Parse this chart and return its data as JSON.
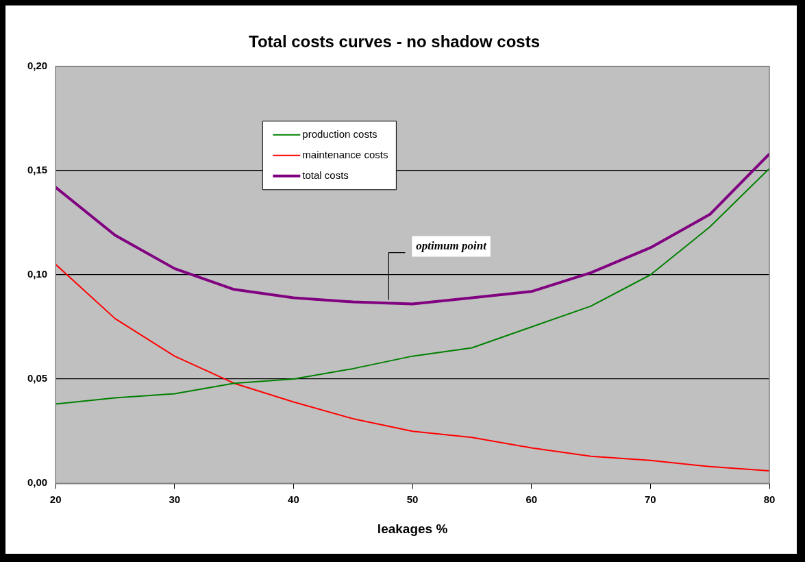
{
  "chart_data": {
    "type": "line",
    "title": "Total costs curves - no shadow costs",
    "xlabel": "leakages %",
    "x": [
      20,
      25,
      30,
      35,
      40,
      45,
      50,
      55,
      60,
      65,
      70,
      75,
      80
    ],
    "series": [
      {
        "name": "production costs",
        "color": "#008000",
        "values": [
          0.038,
          0.041,
          0.043,
          0.048,
          0.05,
          0.055,
          0.061,
          0.065,
          0.075,
          0.085,
          0.1,
          0.123,
          0.151
        ]
      },
      {
        "name": "maintenance costs",
        "color": "#ff0000",
        "values": [
          0.105,
          0.079,
          0.061,
          0.048,
          0.039,
          0.031,
          0.025,
          0.022,
          0.017,
          0.013,
          0.011,
          0.008,
          0.006
        ]
      },
      {
        "name": "total costs",
        "color": "#800080",
        "values": [
          0.142,
          0.119,
          0.103,
          0.093,
          0.089,
          0.087,
          0.086,
          0.089,
          0.092,
          0.101,
          0.113,
          0.129,
          0.158
        ]
      }
    ],
    "xlim": [
      20,
      80
    ],
    "xticks": [
      20,
      30,
      40,
      50,
      60,
      70,
      80
    ],
    "ylim": [
      0,
      0.2
    ],
    "yticks": [
      {
        "value": 0,
        "label": "0,00"
      },
      {
        "value": 0.05,
        "label": "0,05"
      },
      {
        "value": 0.1,
        "label": "0,10"
      },
      {
        "value": 0.15,
        "label": "0,15"
      },
      {
        "value": 0.2,
        "label": "0,20"
      }
    ],
    "annotations": [
      {
        "text": "optimum point",
        "x": 48,
        "y": 0.087
      }
    ],
    "grid": "y",
    "legend": "top",
    "marker": "none",
    "line_style": "solid"
  }
}
